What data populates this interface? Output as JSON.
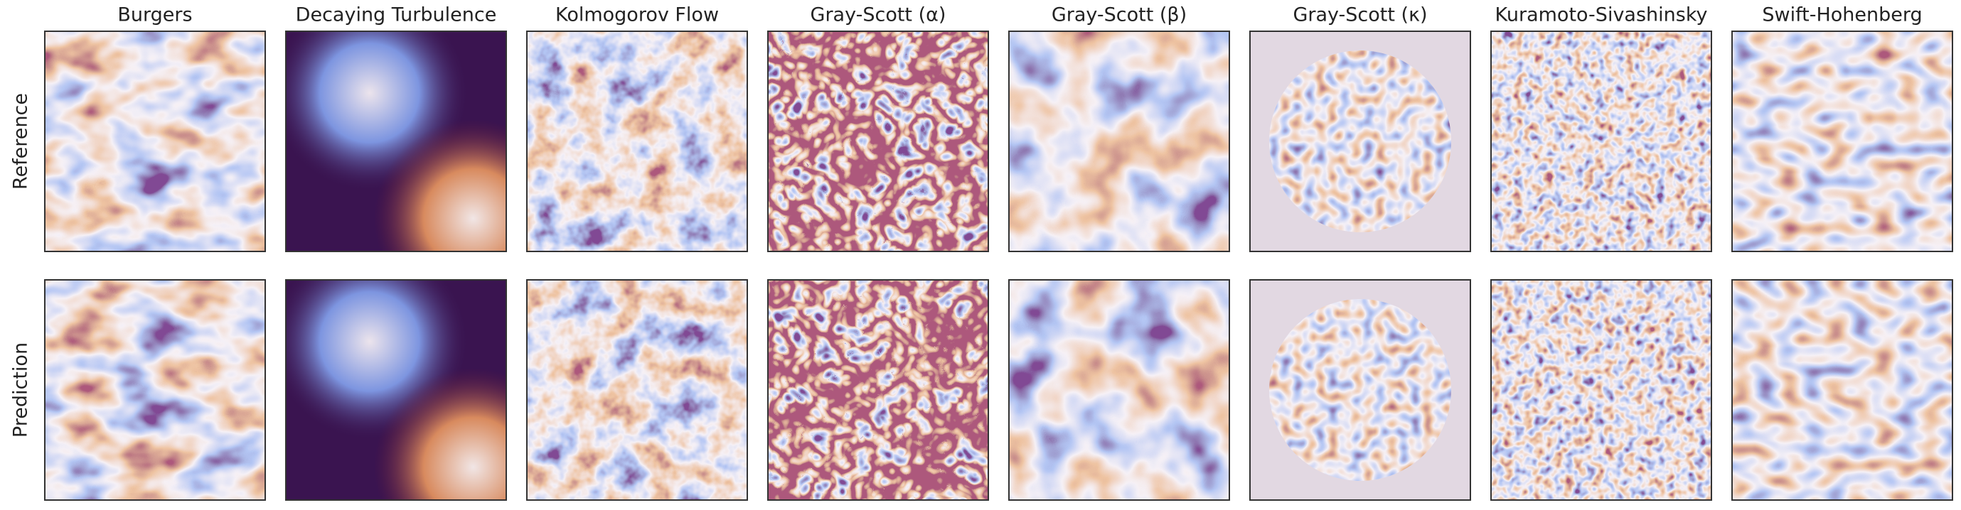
{
  "columns": [
    "Burgers",
    "Decaying Turbulence",
    "Kolmogorov Flow",
    "Gray-Scott (α)",
    "Gray-Scott (β)",
    "Gray-Scott (κ)",
    "Kuramoto-Sivashinsky",
    "Swift-Hohenberg"
  ],
  "rows": [
    "Reference",
    "Prediction"
  ]
}
